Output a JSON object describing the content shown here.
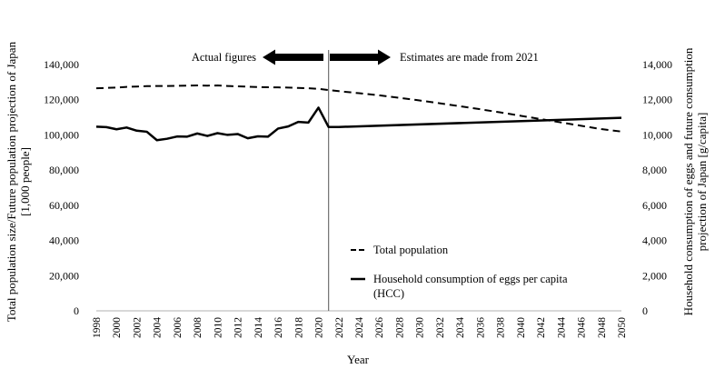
{
  "chart_data": {
    "type": "line",
    "xlabel": "Year",
    "ylabel_left": "Total population size/Future population projection of Japan [1,000 people]",
    "ylabel_left_lines": [
      "Total population size/Future population projection of Japan",
      "[1,000 people]"
    ],
    "ylabel_right": "Household consumption of eggs and future consumption projection of Japan [g/capita]",
    "ylabel_right_lines": [
      "Household consumption of eggs and future consumption",
      "projection of Japan [g/capita]"
    ],
    "xlim": [
      1998,
      2050
    ],
    "ylim_left": [
      0,
      140000
    ],
    "ylim_right": [
      0,
      14000
    ],
    "y_ticks_left": [
      "0",
      "20,000",
      "40,000",
      "60,000",
      "80,000",
      "100,000",
      "120,000",
      "140,000"
    ],
    "y_ticks_right": [
      "0",
      "2,000",
      "4,000",
      "6,000",
      "8,000",
      "10,000",
      "12,000",
      "14,000"
    ],
    "x_ticks": [
      "1998",
      "2000",
      "2002",
      "2004",
      "2006",
      "2008",
      "2010",
      "2012",
      "2014",
      "2016",
      "2018",
      "2020",
      "2022",
      "2024",
      "2026",
      "2028",
      "2030",
      "2032",
      "2034",
      "2036",
      "2038",
      "2040",
      "2042",
      "2044",
      "2046",
      "2048",
      "2050"
    ],
    "divider_year": 2021,
    "annotation_left": "Actual figures",
    "annotation_right": "Estimates are made from 2021",
    "series": [
      {
        "name": "Total population",
        "axis": "left",
        "style": "dashed",
        "x": [
          1998,
          1999,
          2000,
          2001,
          2002,
          2003,
          2004,
          2005,
          2006,
          2007,
          2008,
          2009,
          2010,
          2011,
          2012,
          2013,
          2014,
          2015,
          2016,
          2017,
          2018,
          2019,
          2020,
          2021,
          2022,
          2024,
          2026,
          2028,
          2030,
          2032,
          2034,
          2036,
          2038,
          2040,
          2042,
          2044,
          2046,
          2048,
          2050
        ],
        "values": [
          126500,
          126700,
          126900,
          127300,
          127500,
          127700,
          127800,
          127800,
          127900,
          128000,
          128100,
          128000,
          128100,
          127800,
          127600,
          127400,
          127200,
          127100,
          127000,
          126900,
          126700,
          126500,
          126200,
          125500,
          124900,
          123700,
          122500,
          121100,
          119600,
          118000,
          116300,
          114600,
          112800,
          110900,
          109000,
          107100,
          105200,
          103300,
          101900
        ]
      },
      {
        "name": "Household consumption of eggs per capita (HCC)",
        "legend_lines": [
          "Household consumption of eggs per capita",
          "(HCC)"
        ],
        "axis": "right",
        "style": "solid",
        "x": [
          1998,
          1999,
          2000,
          2001,
          2002,
          2003,
          2004,
          2005,
          2006,
          2007,
          2008,
          2009,
          2010,
          2011,
          2012,
          2013,
          2014,
          2015,
          2016,
          2017,
          2018,
          2019,
          2020,
          2021,
          2022,
          2050
        ],
        "values": [
          10470,
          10440,
          10320,
          10420,
          10240,
          10180,
          9700,
          9780,
          9910,
          9900,
          10080,
          9940,
          10100,
          10000,
          10050,
          9810,
          9920,
          9900,
          10360,
          10480,
          10740,
          10700,
          11550,
          10450,
          10450,
          10970
        ]
      }
    ]
  }
}
